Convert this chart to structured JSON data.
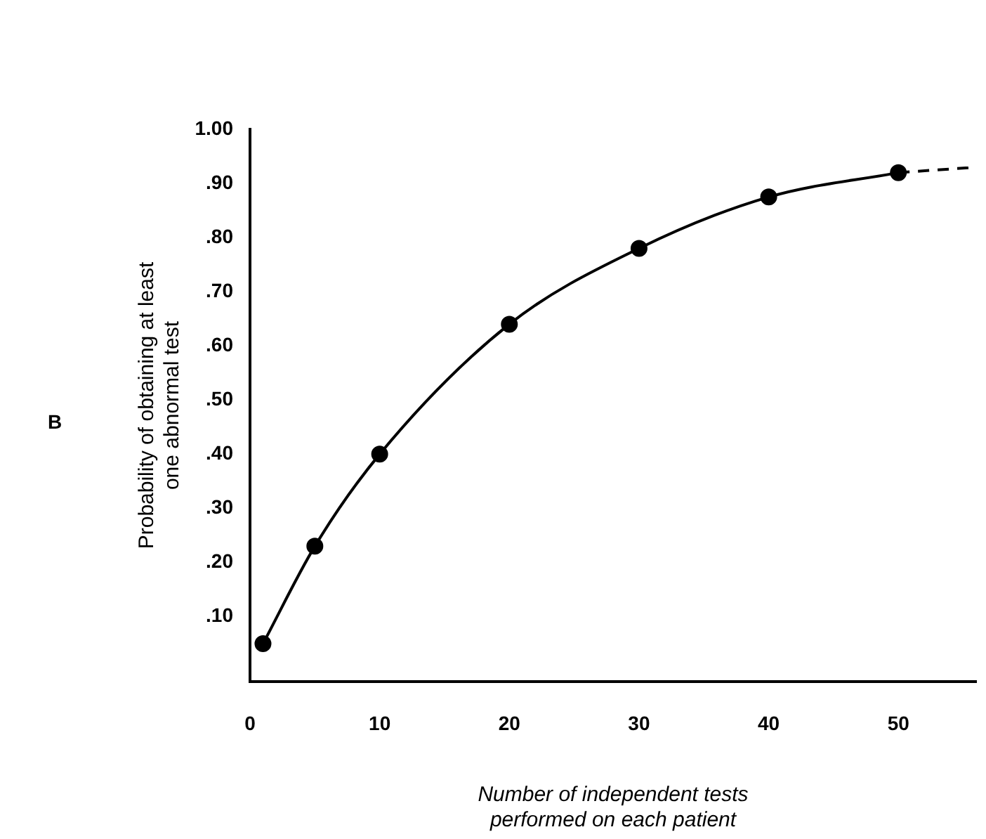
{
  "chart_data": {
    "type": "line",
    "xlabel": "Number of independent tests\nperformed on each patient",
    "ylabel": "Probability of obtaining at least\none abnormal test",
    "annotations": [
      "B"
    ],
    "xlim": [
      0,
      56
    ],
    "xticks": [
      0,
      10,
      20,
      30,
      40,
      50
    ],
    "ylim": [
      -0.02,
      1.0
    ],
    "yticks": [
      {
        "value": 0.1,
        "label": ".10"
      },
      {
        "value": 0.2,
        "label": ".20"
      },
      {
        "value": 0.3,
        "label": ".30"
      },
      {
        "value": 0.4,
        "label": ".40"
      },
      {
        "value": 0.5,
        "label": ".50"
      },
      {
        "value": 0.6,
        "label": ".60"
      },
      {
        "value": 0.7,
        "label": ".70"
      },
      {
        "value": 0.8,
        "label": ".80"
      },
      {
        "value": 0.9,
        "label": ".90"
      },
      {
        "value": 1.0,
        "label": "1.00"
      }
    ],
    "grid": false,
    "legend": false,
    "marker": "circle",
    "line_style": "solid",
    "series": [
      {
        "color": "#000000",
        "x": [
          1,
          5,
          10,
          20,
          30,
          40,
          50
        ],
        "values": [
          0.05,
          0.23,
          0.4,
          0.64,
          0.78,
          0.875,
          0.92
        ]
      },
      {
        "color": "#000000",
        "x": [
          50,
          56
        ],
        "values": [
          0.92,
          0.93
        ],
        "line_style": "dashed",
        "marker": "none"
      }
    ]
  }
}
